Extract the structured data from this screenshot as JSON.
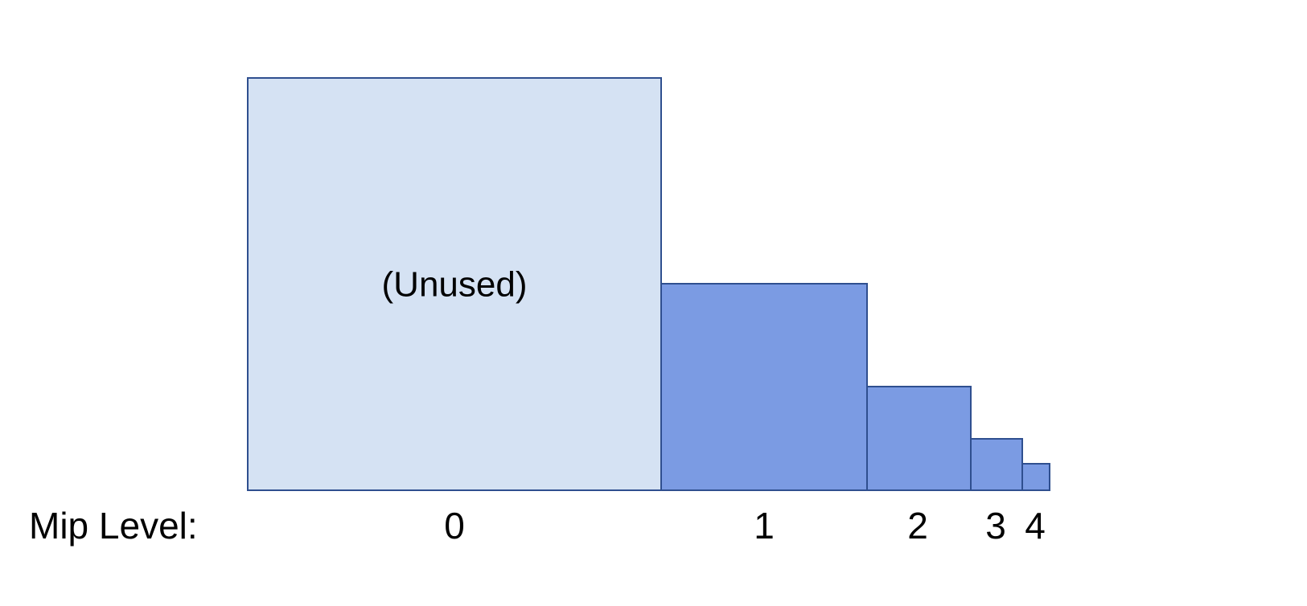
{
  "caption": "Mip Level:",
  "levels": [
    {
      "label": "0",
      "note": "(Unused)"
    },
    {
      "label": "1"
    },
    {
      "label": "2"
    },
    {
      "label": "3"
    },
    {
      "label": "4"
    }
  ]
}
